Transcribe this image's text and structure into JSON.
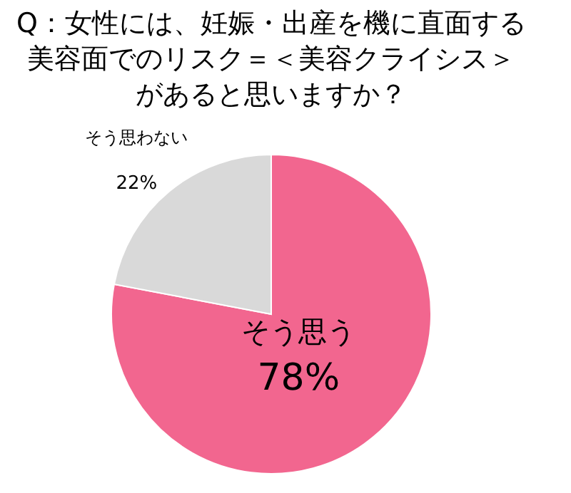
{
  "chart_data": {
    "type": "pie",
    "title": "Q：女性には、妊娠・出産を機に直面する美容面でのリスク＝＜美容クライシス＞があると思いますか？",
    "categories": [
      "そう思う",
      "そう思わない"
    ],
    "values": [
      78,
      22
    ],
    "colors": [
      "#f2668f",
      "#d9d9d9"
    ],
    "value_labels": [
      "78%",
      "22%"
    ],
    "legend": false
  }
}
